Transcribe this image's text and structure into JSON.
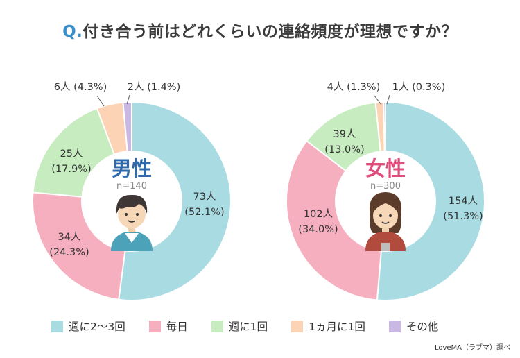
{
  "title": {
    "prefix": "Q.",
    "text": "付き合う前はどれくらいの連絡頻度が理想ですか？"
  },
  "credit": "LoveMA（ラブマ）調べ",
  "colors": {
    "週に2〜3回": "#a9dbe2",
    "毎日": "#f5afbf",
    "週に1回": "#c6ecbf",
    "1ヵ月に1回": "#fcd3b4",
    "その他": "#c9b8e3",
    "male_center": "#2e6aab",
    "female_center": "#e04c7c"
  },
  "chart_data": [
    {
      "type": "pie",
      "donut": true,
      "center_label": "男性",
      "n_label": "n=140",
      "categories": [
        "週に2〜3回",
        "毎日",
        "週に1回",
        "1ヵ月に1回",
        "その他"
      ],
      "counts": [
        73,
        34,
        25,
        6,
        2
      ],
      "values": [
        52.1,
        24.3,
        17.9,
        4.3,
        1.4
      ],
      "labels": [
        "73人",
        "34人",
        "25人",
        "6人",
        "2人"
      ],
      "percent_labels": [
        "(52.1%)",
        "(24.3%)",
        "(17.9%)",
        "(4.3%)",
        "(1.4%)"
      ]
    },
    {
      "type": "pie",
      "donut": true,
      "center_label": "女性",
      "n_label": "n=300",
      "categories": [
        "週に2〜3回",
        "毎日",
        "週に1回",
        "1ヵ月に1回",
        "その他"
      ],
      "counts": [
        154,
        102,
        39,
        4,
        1
      ],
      "values": [
        51.3,
        34.0,
        13.0,
        1.3,
        0.3
      ],
      "labels": [
        "154人",
        "102人",
        "39人",
        "4人",
        "1人"
      ],
      "percent_labels": [
        "(51.3%)",
        "(34.0%)",
        "(13.0%)",
        "(1.3%)",
        "(0.3%)"
      ]
    }
  ],
  "legend": [
    "週に2〜3回",
    "毎日",
    "週に1回",
    "1ヵ月に1回",
    "その他"
  ],
  "avatars": {
    "male": "male-avatar",
    "female": "female-avatar"
  }
}
